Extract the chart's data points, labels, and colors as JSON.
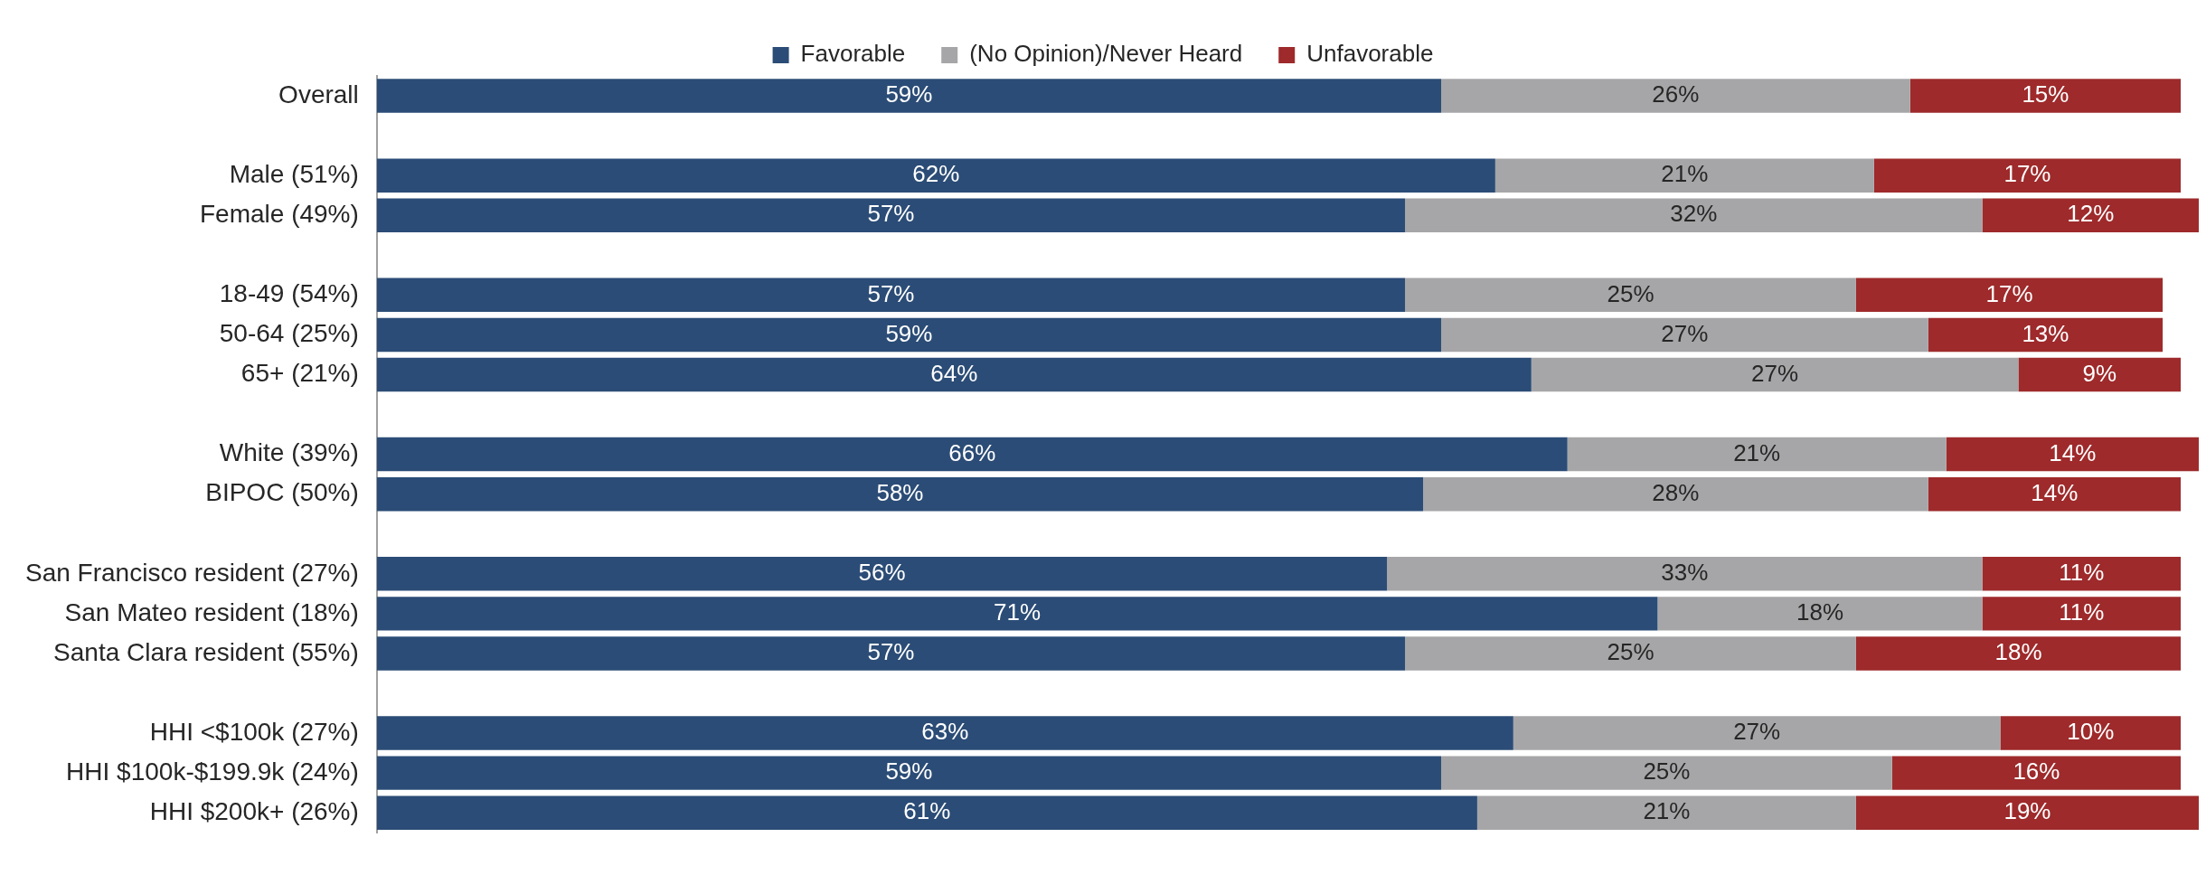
{
  "chart_data": {
    "type": "bar",
    "orientation": "horizontal",
    "stacked": true,
    "legend": "top",
    "categories": [
      "Overall",
      null,
      "Male (51%)",
      "Female (49%)",
      null,
      "18-49 (54%)",
      "50-64 (25%)",
      "65+ (21%)",
      null,
      "White (39%)",
      "BIPOC (50%)",
      null,
      "San Francisco resident (27%)",
      "San Mateo resident (18%)",
      "Santa Clara resident (55%)",
      null,
      "HHI <$100k (27%)",
      "HHI $100k-$199.9k (24%)",
      "HHI $200k+ (26%)"
    ],
    "series": [
      {
        "name": "Favorable",
        "color": "#2b4c76",
        "values": [
          59,
          null,
          62,
          57,
          null,
          57,
          59,
          64,
          null,
          66,
          58,
          null,
          56,
          71,
          57,
          null,
          63,
          59,
          61
        ],
        "value_labels": [
          "59%",
          null,
          "62%",
          "57%",
          null,
          "57%",
          "59%",
          "64%",
          null,
          "66%",
          "58%",
          null,
          "56%",
          "71%",
          "57%",
          null,
          "63%",
          "59%",
          "61%"
        ]
      },
      {
        "name": "(No Opinion)/Never Heard",
        "color": "#a6a6a8",
        "values": [
          26,
          null,
          21,
          32,
          null,
          25,
          27,
          27,
          null,
          21,
          28,
          null,
          33,
          18,
          25,
          null,
          27,
          25,
          21
        ],
        "value_labels": [
          "26%",
          null,
          "21%",
          "32%",
          null,
          "25%",
          "27%",
          "27%",
          null,
          "21%",
          "28%",
          null,
          "33%",
          "18%",
          "25%",
          null,
          "27%",
          "25%",
          "21%"
        ]
      },
      {
        "name": "Unfavorable",
        "color": "#9e2a2b",
        "values": [
          15,
          null,
          17,
          12,
          null,
          17,
          13,
          9,
          null,
          14,
          14,
          null,
          11,
          11,
          18,
          null,
          10,
          16,
          19
        ],
        "value_labels": [
          "15%",
          null,
          "17%",
          "12%",
          null,
          "17%",
          "13%",
          "9%",
          null,
          "14%",
          "14%",
          null,
          "11%",
          "11%",
          "18%",
          null,
          "10%",
          "16%",
          "19%"
        ]
      }
    ]
  }
}
